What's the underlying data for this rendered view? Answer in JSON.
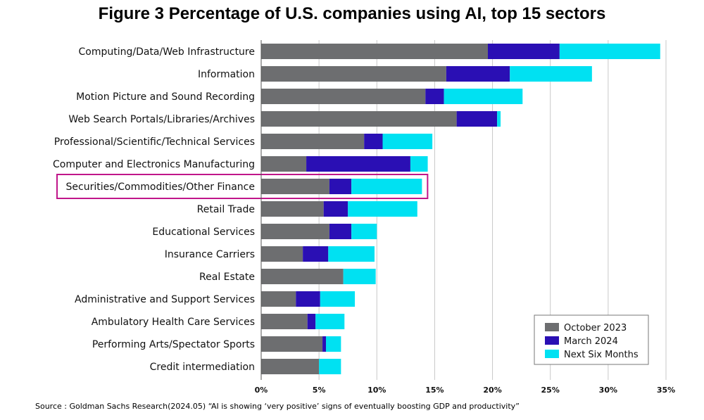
{
  "chart_data": {
    "type": "bar",
    "orientation": "horizontal",
    "stacked": true,
    "title": "Figure 3 Percentage of U.S. companies using AI, top 15 sectors",
    "xlabel": "",
    "ylabel": "",
    "xlim": [
      0,
      35
    ],
    "xticks": [
      0,
      5,
      10,
      15,
      20,
      25,
      30,
      35
    ],
    "xtick_labels": [
      "0%",
      "5%",
      "10%",
      "15%",
      "20%",
      "25%",
      "30%",
      "35%"
    ],
    "grid": "vertical",
    "legend_position": "bottom-right",
    "highlighted_category": "Securities/Commodities/Other Finance",
    "highlight_color": "#c0168a",
    "categories": [
      "Computing/Data/Web Infrastructure",
      "Information",
      "Motion Picture and Sound Recording",
      "Web Search Portals/Libraries/Archives",
      "Professional/Scientific/Technical Services",
      "Computer and Electronics Manufacturing",
      "Securities/Commodities/Other Finance",
      "Retail Trade",
      "Educational Services",
      "Insurance Carriers",
      "Real Estate",
      "Administrative and Support Services",
      "Ambulatory Health Care Services",
      "Performing Arts/Spectator Sports",
      "Credit intermediation"
    ],
    "series": [
      {
        "name": "October 2023",
        "color": "#6d6e70",
        "values": [
          19.6,
          16.0,
          14.2,
          16.9,
          8.9,
          3.9,
          5.9,
          5.4,
          5.9,
          3.6,
          7.1,
          3.0,
          4.0,
          5.3,
          5.0
        ]
      },
      {
        "name": "March 2024",
        "color": "#2a0fb4",
        "values": [
          6.2,
          5.5,
          1.6,
          3.5,
          1.6,
          9.0,
          1.9,
          2.1,
          1.9,
          2.2,
          0.0,
          2.1,
          0.7,
          0.3,
          0.0
        ]
      },
      {
        "name": "Next Six Months",
        "color": "#00e1f2",
        "values": [
          8.7,
          7.1,
          6.8,
          0.3,
          4.3,
          1.5,
          6.1,
          6.0,
          2.2,
          4.0,
          2.8,
          3.0,
          2.5,
          1.3,
          1.9
        ]
      }
    ]
  },
  "source_note": "Source : Goldman Sachs Research(2024.05) “AI is showing ‘very positive’ signs of eventually boosting GDP and productivity”"
}
